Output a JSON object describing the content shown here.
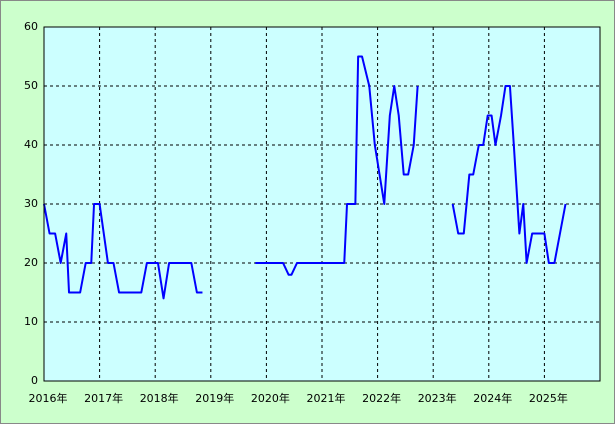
{
  "chart_data": {
    "type": "line",
    "x": [
      2016.0,
      2016.1,
      2016.2,
      2016.3,
      2016.4,
      2016.45,
      2016.65,
      2016.75,
      2016.85,
      2016.9,
      2017.0,
      2017.15,
      2017.25,
      2017.35,
      2017.75,
      2017.85,
      2018.05,
      2018.15,
      2018.25,
      2018.65,
      2018.75,
      2018.85,
      2019.3,
      2019.8,
      2020.3,
      2020.4,
      2020.45,
      2020.55,
      2021.4,
      2021.45,
      2021.6,
      2021.65,
      2021.72,
      2021.85,
      2021.95,
      2022.12,
      2022.22,
      2022.3,
      2022.38,
      2022.47,
      2022.55,
      2022.65,
      2022.72,
      2023.0,
      2023.35,
      2023.45,
      2023.55,
      2023.65,
      2023.72,
      2023.82,
      2023.9,
      2023.98,
      2024.05,
      2024.12,
      2024.22,
      2024.3,
      2024.38,
      2024.45,
      2024.55,
      2024.62,
      2024.68,
      2024.78,
      2025.0,
      2025.08,
      2025.18,
      2025.28,
      2025.38
    ],
    "values": [
      30,
      25,
      25,
      20,
      25,
      15,
      15,
      20,
      20,
      30,
      30,
      20,
      20,
      15,
      15,
      20,
      20,
      14,
      20,
      20,
      15,
      15,
      null,
      20,
      20,
      18,
      18,
      20,
      20,
      30,
      30,
      55,
      55,
      50,
      40,
      30,
      45,
      50,
      45,
      35,
      35,
      40,
      50,
      null,
      30,
      25,
      25,
      35,
      35,
      40,
      40,
      45,
      45,
      40,
      45,
      50,
      50,
      40,
      25,
      30,
      20,
      25,
      25,
      20,
      20,
      25,
      30
    ],
    "color": "#0000ff",
    "xlim": [
      2016,
      2026
    ],
    "xticks": [
      {
        "value": 2016,
        "label": "2016年"
      },
      {
        "value": 2017,
        "label": "2017年"
      },
      {
        "value": 2018,
        "label": "2018年"
      },
      {
        "value": 2019,
        "label": "2019年"
      },
      {
        "value": 2020,
        "label": "2020年"
      },
      {
        "value": 2021,
        "label": "2021年"
      },
      {
        "value": 2022,
        "label": "2022年"
      },
      {
        "value": 2023,
        "label": "2023年"
      },
      {
        "value": 2024,
        "label": "2024年"
      },
      {
        "value": 2025,
        "label": "2025年"
      }
    ],
    "ylim": [
      0,
      60
    ],
    "yticks": [
      0,
      10,
      20,
      30,
      40,
      50,
      60
    ],
    "grid": true
  }
}
